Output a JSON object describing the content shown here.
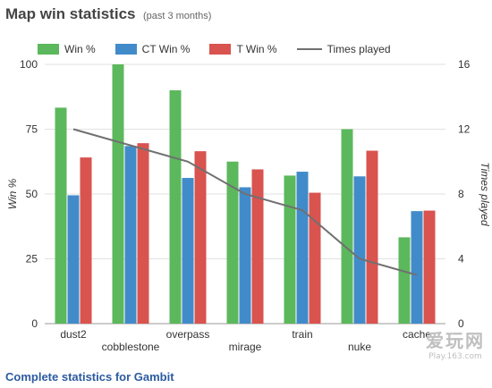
{
  "header": {
    "title": "Map win statistics",
    "subtitle": "(past 3 months)"
  },
  "legend": [
    {
      "label": "Win %",
      "color": "#5cb85c",
      "kind": "bar"
    },
    {
      "label": "CT Win %",
      "color": "#428bca",
      "kind": "bar"
    },
    {
      "label": "T Win %",
      "color": "#d9534f",
      "kind": "bar"
    },
    {
      "label": "Times played",
      "color": "#707070",
      "kind": "line"
    }
  ],
  "footer": {
    "link_text": "Complete statistics for Gambit"
  },
  "watermark": {
    "main": "爱玩网",
    "sub": "Play.163.com"
  },
  "chart_data": {
    "type": "bar",
    "categories": [
      "dust2",
      "cobblestone",
      "overpass",
      "mirage",
      "train",
      "nuke",
      "cache"
    ],
    "series": [
      {
        "name": "Win %",
        "values": [
          83.3,
          100,
          90,
          62.5,
          57.1,
          75,
          33.3
        ],
        "color": "#5cb85c"
      },
      {
        "name": "CT Win %",
        "values": [
          49.5,
          68.5,
          56.2,
          52.6,
          58.6,
          56.8,
          43.4
        ],
        "color": "#428bca"
      },
      {
        "name": "T Win %",
        "values": [
          64.1,
          69.6,
          66.5,
          59.5,
          50.5,
          66.7,
          43.6
        ],
        "color": "#d9534f"
      }
    ],
    "line_series": {
      "name": "Times played",
      "values": [
        12,
        11,
        10,
        8,
        7,
        4,
        3
      ],
      "color": "#707070"
    },
    "ylabel": "Win %",
    "ylabel_right": "Times played",
    "ylim": [
      0,
      100
    ],
    "yticks": [
      0,
      25,
      50,
      75,
      100
    ],
    "ylim_right": [
      0,
      16
    ],
    "yticks_right": [
      0,
      4,
      8,
      12,
      16
    ],
    "grid": true,
    "legend_position": "top"
  }
}
